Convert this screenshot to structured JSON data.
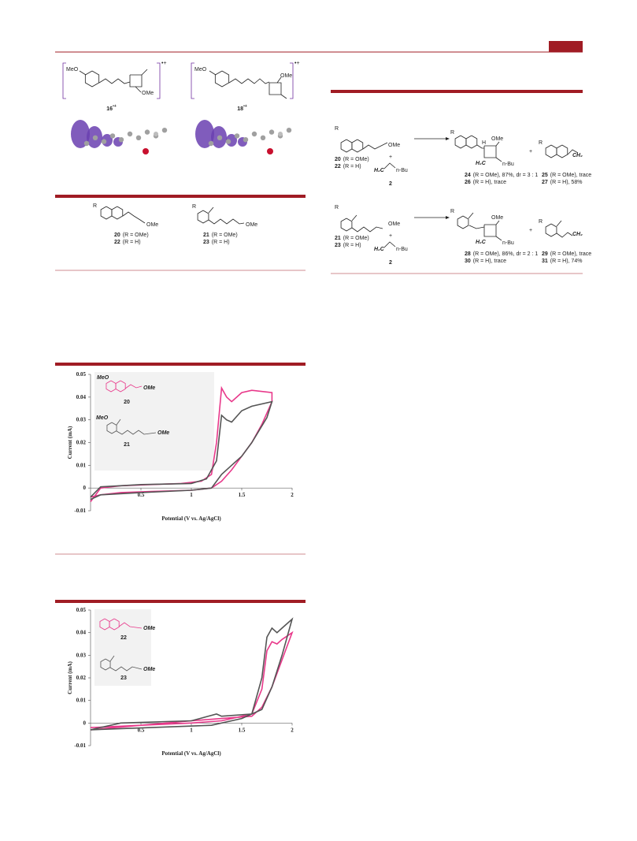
{
  "radical_cations": [
    {
      "substituent": "MeO",
      "group": "OMe",
      "charge": "•+",
      "label": {
        "number": "16",
        "charge": "•+"
      }
    },
    {
      "substituent": "MeO",
      "group": "OMe",
      "charge": "•+",
      "label": {
        "number": "18",
        "charge": "•+"
      }
    }
  ],
  "scheme_left": {
    "structures": [
      {
        "r": "R",
        "group": "OMe",
        "labels": [
          {
            "number": "20",
            "text": "(R = OMe)"
          },
          {
            "number": "22",
            "text": "(R = H)"
          }
        ]
      },
      {
        "r": "R",
        "group": "OMe",
        "labels": [
          {
            "number": "21",
            "text": "(R = OMe)"
          },
          {
            "number": "23",
            "text": "(R = H)"
          }
        ]
      }
    ]
  },
  "scheme_right": {
    "rows": [
      {
        "r": "R",
        "group": "OMe",
        "substrate_labels": [
          {
            "number": "20",
            "text": "(R = OMe)"
          },
          {
            "number": "22",
            "text": "(R = H)"
          }
        ],
        "plus_1": "+",
        "alkene_left": "H₂C",
        "alkene_right": "n-Bu",
        "alkene_label": "2",
        "product_r": "R",
        "product_group": "OMe",
        "product_h": "H",
        "product_ch2": "H₂C",
        "product_nbu": "n-Bu",
        "product_labels": [
          {
            "number": "24",
            "text": "(R = OMe), 87%, dr = 3 : 1"
          },
          {
            "number": "26",
            "text": "(R = H), trace"
          }
        ],
        "plus_2": "+",
        "side_r": "R",
        "side_ch2": "CH₂",
        "side_labels": [
          {
            "number": "25",
            "text": "(R = OMe), trace"
          },
          {
            "number": "27",
            "text": "(R = H), 58%"
          }
        ]
      },
      {
        "r": "R",
        "group": "OMe",
        "substrate_labels": [
          {
            "number": "21",
            "text": "(R = OMe)"
          },
          {
            "number": "23",
            "text": "(R = H)"
          }
        ],
        "plus_1": "+",
        "alkene_left": "H₂C",
        "alkene_right": "n-Bu",
        "alkene_label": "2",
        "product_r": "R",
        "product_group": "OMe",
        "product_ch2": "H₂C",
        "product_nbu": "n-Bu",
        "product_labels": [
          {
            "number": "28",
            "text": "(R = OMe), 86%, dr = 2 : 1"
          },
          {
            "number": "30",
            "text": "(R = H), trace"
          }
        ],
        "plus_2": "+",
        "side_r": "R",
        "side_ch2": "CH₂",
        "side_labels": [
          {
            "number": "29",
            "text": "(R = OMe), trace"
          },
          {
            "number": "31",
            "text": "(R = H), 74%"
          }
        ]
      }
    ]
  },
  "chart_data": [
    {
      "type": "line",
      "xlabel": "Potential (V vs. Ag/AgCl)",
      "ylabel": "Current (mA)",
      "xlim": [
        0,
        2
      ],
      "ylim": [
        -0.01,
        0.05
      ],
      "xticks": [
        0.5,
        1,
        1.5,
        2
      ],
      "yticks": [
        -0.01,
        0,
        0.01,
        0.02,
        0.03,
        0.04,
        0.05
      ],
      "annotations": [
        "MeO",
        "OMe",
        "MeO",
        "OMe"
      ],
      "series": [
        {
          "name": "20",
          "color": "#e8388a",
          "x": [
            0,
            0.1,
            0.3,
            0.6,
            0.9,
            1.1,
            1.2,
            1.25,
            1.3,
            1.35,
            1.4,
            1.5,
            1.6,
            1.8,
            1.8,
            1.7,
            1.6,
            1.5,
            1.4,
            1.3,
            1.2,
            1.0,
            0.6,
            0.3,
            0.1,
            0
          ],
          "values": [
            -0.006,
            0.0,
            0.001,
            0.0015,
            0.002,
            0.003,
            0.006,
            0.02,
            0.044,
            0.04,
            0.038,
            0.042,
            0.043,
            0.042,
            0.038,
            0.028,
            0.02,
            0.014,
            0.008,
            0.003,
            0.0,
            -0.001,
            -0.0015,
            -0.002,
            -0.003,
            -0.004
          ]
        },
        {
          "name": "21",
          "color": "#555555",
          "x": [
            0,
            0.1,
            0.5,
            1.0,
            1.15,
            1.25,
            1.3,
            1.35,
            1.4,
            1.5,
            1.6,
            1.8,
            1.75,
            1.6,
            1.5,
            1.4,
            1.3,
            1.2,
            1.0,
            0.5,
            0.1,
            0
          ],
          "values": [
            -0.004,
            0.0005,
            0.0015,
            0.002,
            0.004,
            0.012,
            0.032,
            0.03,
            0.029,
            0.034,
            0.036,
            0.038,
            0.031,
            0.02,
            0.014,
            0.01,
            0.006,
            0.0,
            -0.001,
            -0.002,
            -0.003,
            -0.005
          ]
        }
      ]
    },
    {
      "type": "line",
      "xlabel": "Potential (V vs. Ag/AgCl)",
      "ylabel": "Current (mA)",
      "xlim": [
        0,
        2
      ],
      "ylim": [
        -0.01,
        0.05
      ],
      "xticks": [
        0.5,
        1,
        1.5,
        2
      ],
      "yticks": [
        -0.01,
        0,
        0.01,
        0.02,
        0.03,
        0.04,
        0.05
      ],
      "annotations": [
        "OMe",
        "OMe"
      ],
      "series": [
        {
          "name": "22",
          "color": "#e8388a",
          "x": [
            0,
            0.5,
            1.0,
            1.3,
            1.6,
            1.7,
            1.75,
            1.8,
            1.85,
            1.9,
            2.0,
            1.9,
            1.8,
            1.7,
            1.6,
            1.3,
            1.0,
            0.5,
            0
          ],
          "values": [
            -0.003,
            -0.001,
            0.0,
            0.001,
            0.004,
            0.015,
            0.032,
            0.036,
            0.035,
            0.037,
            0.04,
            0.028,
            0.016,
            0.007,
            0.003,
            0.002,
            0.001,
            -0.001,
            -0.002
          ]
        },
        {
          "name": "23",
          "color": "#555555",
          "x": [
            0,
            0.3,
            1.0,
            1.25,
            1.3,
            1.6,
            1.7,
            1.75,
            1.8,
            1.85,
            1.9,
            2.0,
            1.9,
            1.8,
            1.7,
            1.5,
            1.2,
            0.6,
            0
          ],
          "values": [
            -0.003,
            0.0,
            0.001,
            0.004,
            0.003,
            0.004,
            0.02,
            0.038,
            0.042,
            0.04,
            0.042,
            0.046,
            0.03,
            0.016,
            0.006,
            0.002,
            -0.001,
            -0.002,
            -0.003
          ]
        }
      ]
    }
  ]
}
